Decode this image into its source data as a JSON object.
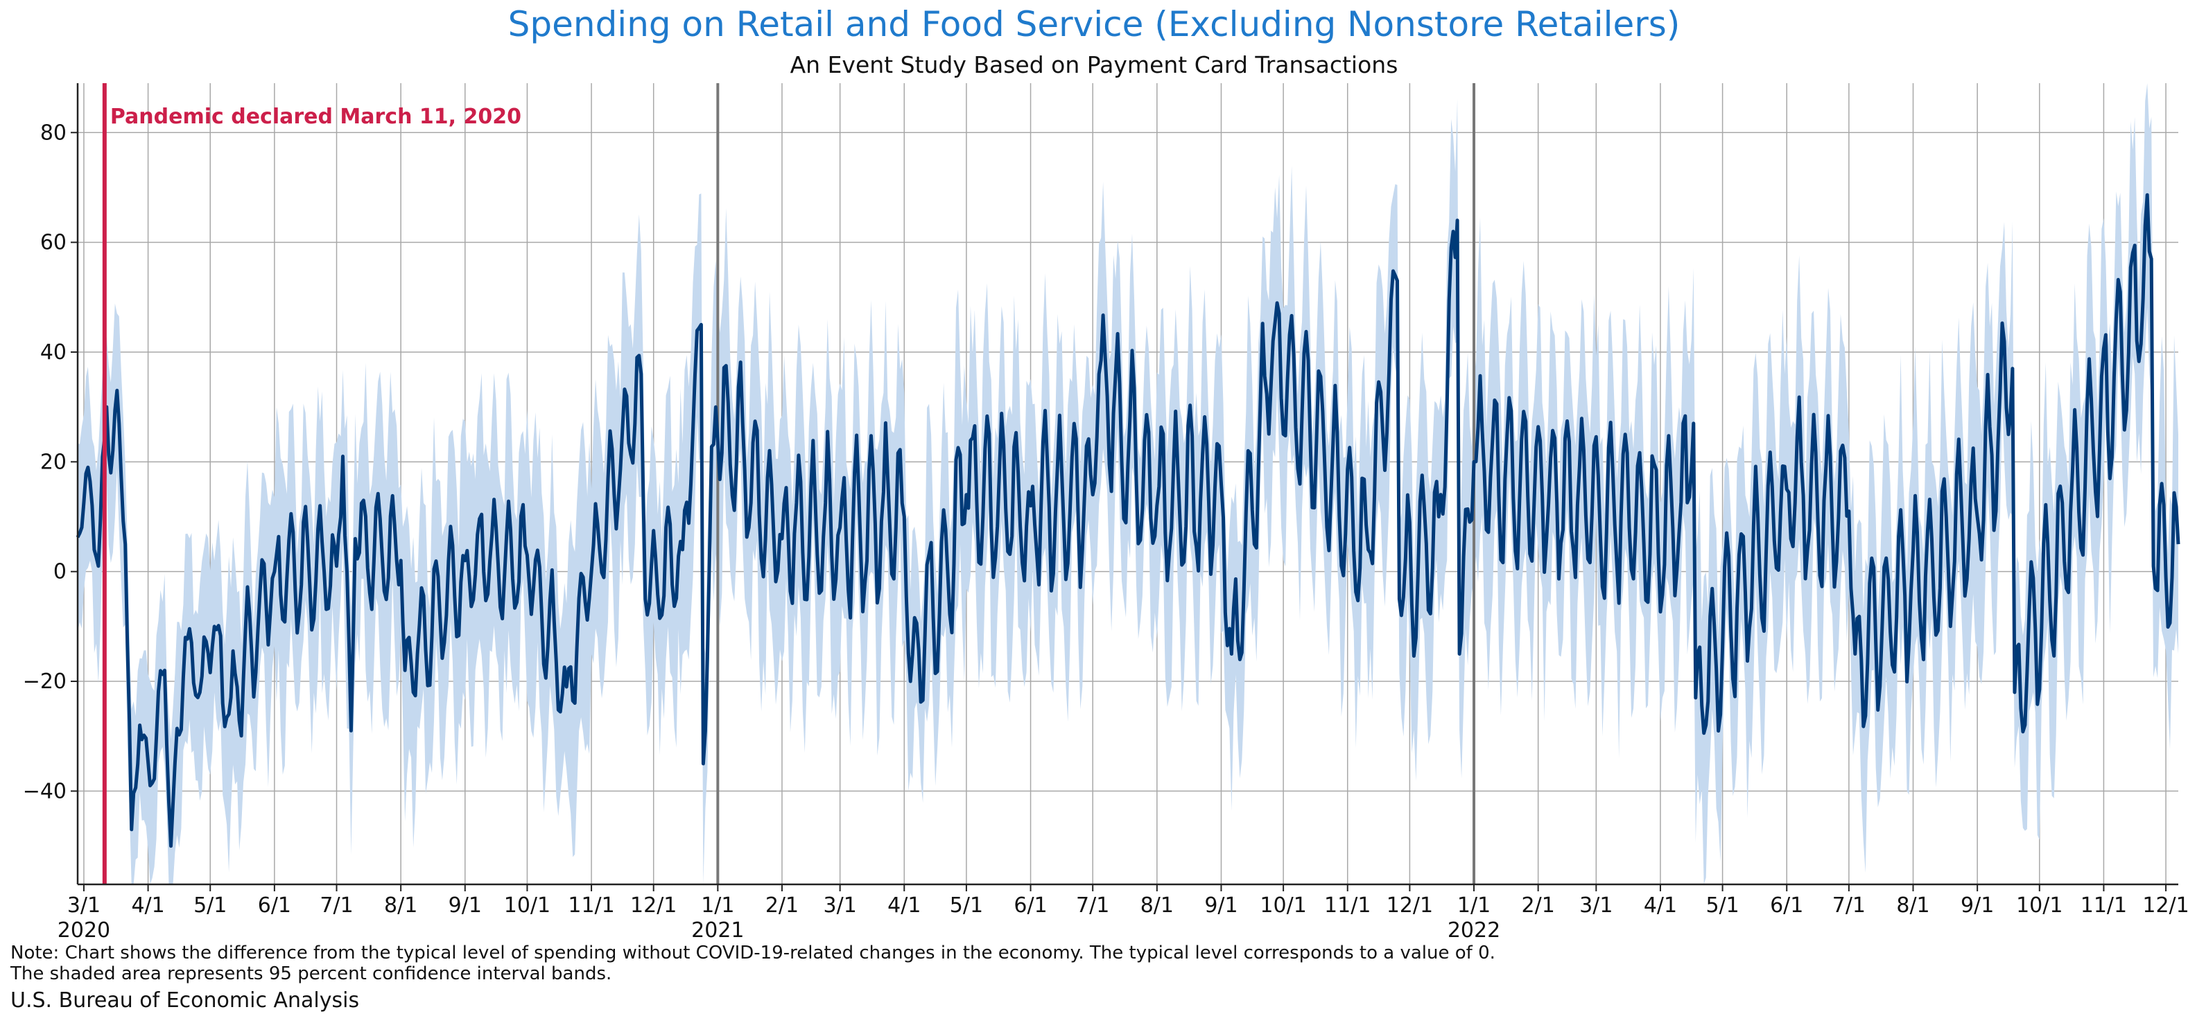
{
  "chart_data": {
    "type": "line",
    "title": "Spending on Retail and Food Service (Excluding Nonstore Retailers)",
    "subtitle": "An Event Study Based on Payment Card Transactions",
    "xlabel": "",
    "ylabel": "",
    "ylim": [
      -57,
      89
    ],
    "yticks": [
      -40,
      -20,
      0,
      20,
      40,
      60,
      80
    ],
    "xrange": [
      "2020-02-27",
      "2022-12-07"
    ],
    "x_tick_labels": [
      "3/1",
      "4/1",
      "5/1",
      "6/1",
      "7/1",
      "8/1",
      "9/1",
      "10/1",
      "11/1",
      "12/1",
      "1/1",
      "2/1",
      "3/1",
      "4/1",
      "5/1",
      "6/1",
      "7/1",
      "8/1",
      "9/1",
      "10/1",
      "11/1",
      "12/1",
      "1/1",
      "2/1",
      "3/1",
      "4/1",
      "5/1",
      "6/1",
      "7/1",
      "8/1",
      "9/1",
      "10/1",
      "11/1",
      "12/1"
    ],
    "x_year_labels": [
      {
        "date": "2020-03-01",
        "label": "2020"
      },
      {
        "date": "2021-01-01",
        "label": "2021"
      },
      {
        "date": "2022-01-01",
        "label": "2022"
      }
    ],
    "year_divider_dates": [
      "2021-01-01",
      "2022-01-01"
    ],
    "grid": true,
    "event": {
      "date": "2020-03-11",
      "label": "Pandemic declared March 11, 2020",
      "color": "#cc1f4a"
    },
    "series": [
      {
        "name": "Spending difference from typical level",
        "color": "#003a78"
      },
      {
        "name": "95 percent confidence interval",
        "color": "#c5d9ef"
      }
    ],
    "anchor_points": {
      "description": "approximate daily values read from the figure; intermediate days follow a weekly cycle around a trend",
      "dates": [
        "2020-02-28",
        "2020-03-03",
        "2020-03-08",
        "2020-03-12",
        "2020-03-14",
        "2020-03-17",
        "2020-03-21",
        "2020-03-24",
        "2020-03-28",
        "2020-04-02",
        "2020-04-09",
        "2020-04-12",
        "2020-04-19",
        "2020-04-26",
        "2020-05-03",
        "2020-05-10",
        "2020-06-01",
        "2020-07-01",
        "2020-07-04",
        "2020-07-08",
        "2020-07-10",
        "2020-08-01",
        "2020-08-03",
        "2020-09-01",
        "2020-10-01",
        "2020-10-20",
        "2020-11-01",
        "2020-11-25",
        "2020-11-27",
        "2020-12-15",
        "2020-12-24",
        "2020-12-25",
        "2020-12-31",
        "2021-02-01",
        "2021-03-01",
        "2021-04-01",
        "2021-04-04",
        "2021-05-01",
        "2021-06-01",
        "2021-07-01",
        "2021-07-04",
        "2021-08-01",
        "2021-09-01",
        "2021-09-06",
        "2021-09-26",
        "2021-11-11",
        "2021-11-25",
        "2021-11-26",
        "2021-12-15",
        "2021-12-24",
        "2021-12-25",
        "2022-01-01",
        "2022-04-10",
        "2022-04-17",
        "2022-04-18",
        "2022-06-01",
        "2022-07-01",
        "2022-07-04",
        "2022-09-01",
        "2022-09-18",
        "2022-09-19",
        "2022-11-24",
        "2022-11-25",
        "2022-12-07"
      ],
      "values": [
        7,
        19,
        1,
        30,
        18,
        33,
        5,
        -47,
        -28,
        -39,
        -18,
        -50,
        -12,
        -22,
        -10,
        -26,
        0,
        1,
        21,
        -29,
        6,
        2,
        -18,
        2,
        3,
        -21,
        0,
        36,
        -5,
        4,
        45,
        -35,
        30,
        6,
        8,
        10,
        -20,
        14,
        12,
        14,
        36,
        12,
        16,
        -15,
        42,
        4,
        53,
        -5,
        10,
        64,
        -15,
        20,
        7,
        27,
        -23,
        15,
        11,
        -15,
        10,
        37,
        -22,
        57,
        1,
        5
      ]
    }
  }
}
